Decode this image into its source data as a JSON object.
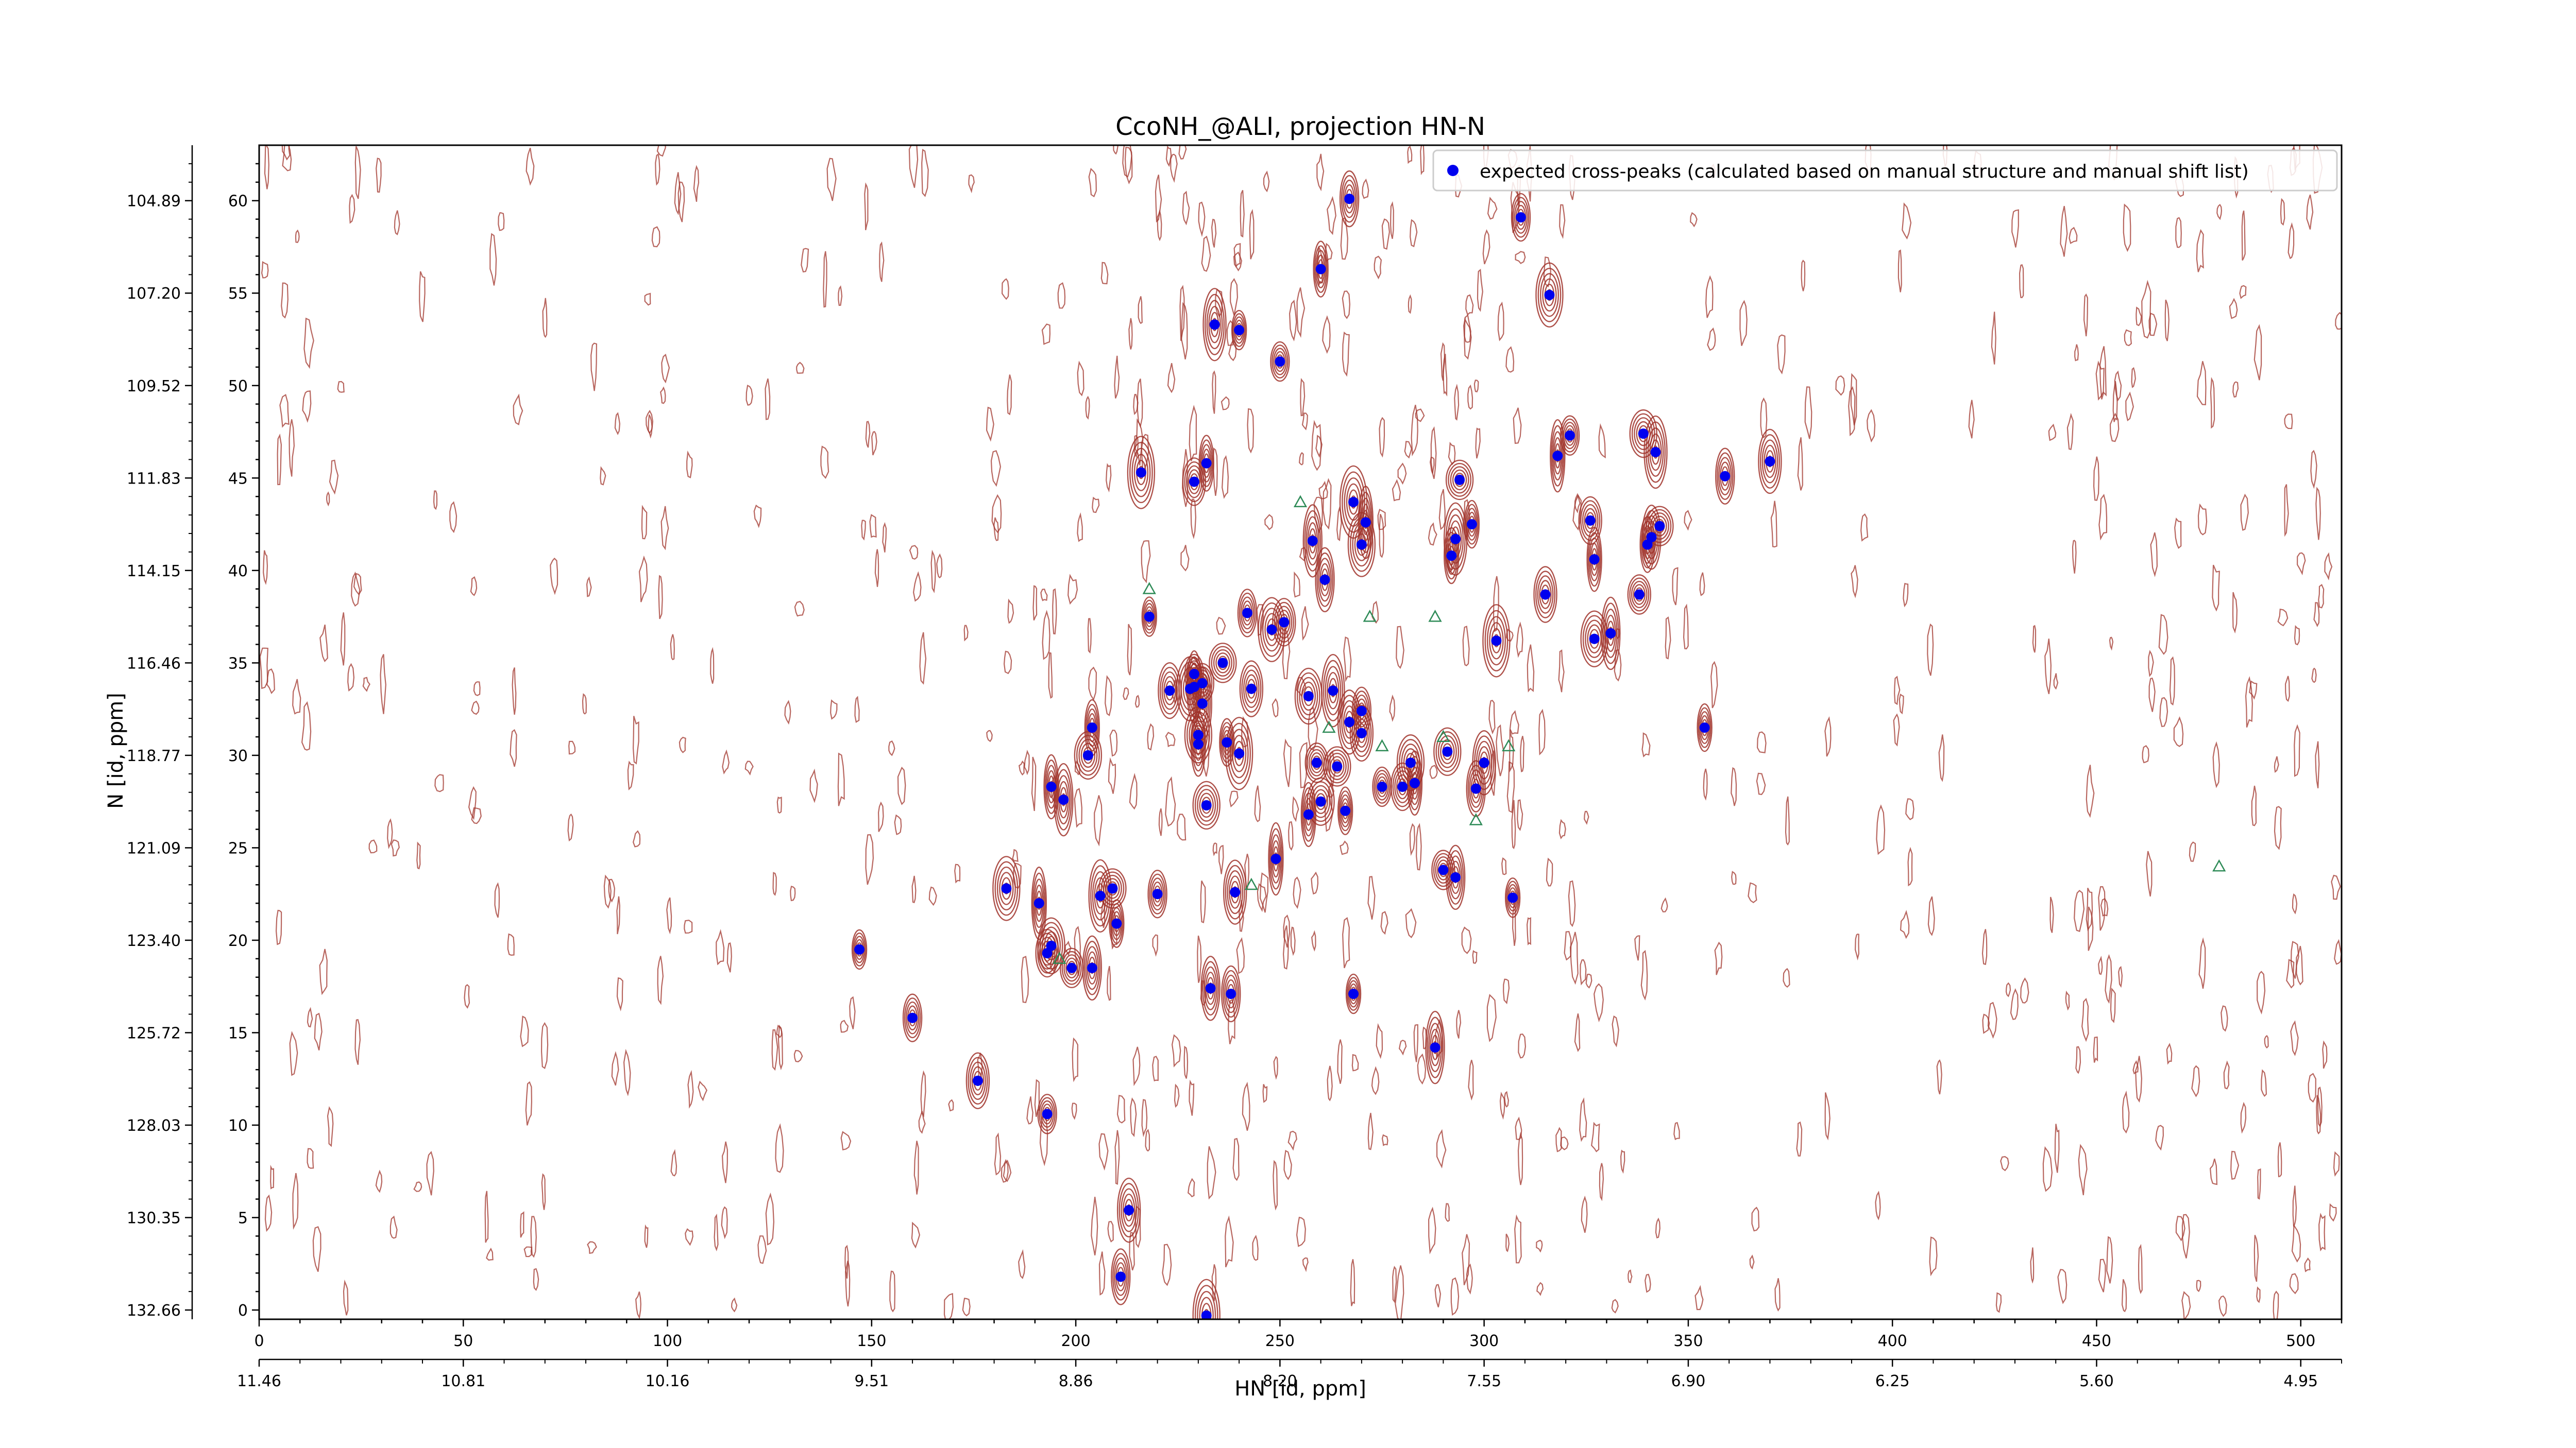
{
  "chart_data": {
    "type": "scatter",
    "title": "CcoNH_@ALI, projection HN-N",
    "xlabel": "HN [id, ppm]",
    "ylabel": "N [id, ppm]",
    "xlim": [
      0,
      510
    ],
    "ylim": [
      -0.5,
      63
    ],
    "grid": false,
    "legend": "top-right",
    "x_ticks": [
      0,
      50,
      100,
      150,
      200,
      250,
      300,
      350,
      400,
      450,
      500
    ],
    "y_ticks": [
      0,
      5,
      10,
      15,
      20,
      25,
      30,
      35,
      40,
      45,
      50,
      55,
      60
    ],
    "x_secondary_ticks": [
      "11.46",
      "10.81",
      "10.16",
      "9.51",
      "8.86",
      "8.20",
      "7.55",
      "6.90",
      "6.25",
      "5.60",
      "4.95"
    ],
    "y_secondary_ticks": [
      "132.66",
      "130.35",
      "128.03",
      "125.72",
      "123.40",
      "121.09",
      "118.77",
      "116.46",
      "114.15",
      "111.83",
      "109.52",
      "107.20",
      "104.89"
    ],
    "series": [
      {
        "name": "expected cross-peaks (calculated based on manual structure and manual shift list)",
        "marker": "filled-circle",
        "color": "#0000ee",
        "points": [
          [
            147,
            19.5
          ],
          [
            160,
            15.8
          ],
          [
            176,
            12.4
          ],
          [
            183,
            22.8
          ],
          [
            191,
            22.0
          ],
          [
            193,
            10.6
          ],
          [
            193,
            19.3
          ],
          [
            194,
            19.7
          ],
          [
            194,
            28.3
          ],
          [
            197,
            27.6
          ],
          [
            199,
            18.5
          ],
          [
            203,
            30.0
          ],
          [
            204,
            31.5
          ],
          [
            204,
            18.5
          ],
          [
            206,
            22.4
          ],
          [
            209,
            22.8
          ],
          [
            210,
            20.9
          ],
          [
            211,
            1.8
          ],
          [
            213,
            5.4
          ],
          [
            216,
            45.3
          ],
          [
            218,
            37.5
          ],
          [
            220,
            22.5
          ],
          [
            223,
            33.5
          ],
          [
            228,
            33.6
          ],
          [
            229,
            33.7
          ],
          [
            229,
            34.4
          ],
          [
            229,
            44.8
          ],
          [
            230,
            31.1
          ],
          [
            230,
            30.6
          ],
          [
            231,
            32.8
          ],
          [
            231,
            33.9
          ],
          [
            232,
            27.3
          ],
          [
            232,
            45.8
          ],
          [
            233,
            17.4
          ],
          [
            234,
            53.3
          ],
          [
            236,
            35.0
          ],
          [
            237,
            30.7
          ],
          [
            238,
            17.1
          ],
          [
            239,
            22.6
          ],
          [
            240,
            30.1
          ],
          [
            240,
            53.0
          ],
          [
            242,
            37.7
          ],
          [
            243,
            33.6
          ],
          [
            248,
            36.8
          ],
          [
            249,
            24.4
          ],
          [
            250,
            51.3
          ],
          [
            251,
            37.2
          ],
          [
            257,
            33.2
          ],
          [
            257,
            26.8
          ],
          [
            258,
            41.6
          ],
          [
            259,
            29.6
          ],
          [
            260,
            27.5
          ],
          [
            260,
            56.3
          ],
          [
            261,
            39.5
          ],
          [
            263,
            33.5
          ],
          [
            264,
            29.4
          ],
          [
            266,
            27.0
          ],
          [
            267,
            60.1
          ],
          [
            267,
            31.8
          ],
          [
            268,
            43.7
          ],
          [
            268,
            17.1
          ],
          [
            270,
            32.4
          ],
          [
            270,
            31.2
          ],
          [
            270,
            41.4
          ],
          [
            271,
            42.6
          ],
          [
            275,
            28.3
          ],
          [
            280,
            28.3
          ],
          [
            282,
            29.6
          ],
          [
            283,
            28.5
          ],
          [
            288,
            14.2
          ],
          [
            290,
            23.8
          ],
          [
            291,
            30.2
          ],
          [
            292,
            40.8
          ],
          [
            293,
            23.4
          ],
          [
            293,
            41.7
          ],
          [
            294,
            44.9
          ],
          [
            297,
            42.5
          ],
          [
            298,
            28.2
          ],
          [
            300,
            29.6
          ],
          [
            303,
            36.2
          ],
          [
            307,
            22.3
          ],
          [
            309,
            59.1
          ],
          [
            315,
            38.7
          ],
          [
            316,
            54.9
          ],
          [
            318,
            46.2
          ],
          [
            321,
            47.3
          ],
          [
            326,
            42.7
          ],
          [
            327,
            36.3
          ],
          [
            327,
            40.6
          ],
          [
            331,
            36.6
          ],
          [
            338,
            38.7
          ],
          [
            339,
            47.4
          ],
          [
            340,
            41.4
          ],
          [
            341,
            41.8
          ],
          [
            342,
            46.4
          ],
          [
            343,
            42.4
          ],
          [
            354,
            31.5
          ],
          [
            359,
            45.1
          ],
          [
            370,
            45.9
          ],
          [
            232,
            -0.3
          ]
        ]
      },
      {
        "name": "",
        "marker": "open-triangle",
        "color": "#2e8b57",
        "points": [
          [
            255,
            43.7
          ],
          [
            272,
            37.5
          ],
          [
            288,
            37.5
          ],
          [
            290,
            31.0
          ],
          [
            306,
            30.5
          ],
          [
            262,
            31.5
          ],
          [
            275,
            30.5
          ],
          [
            298,
            26.5
          ],
          [
            243,
            23.0
          ],
          [
            218,
            39.0
          ],
          [
            196,
            19.0
          ],
          [
            480,
            24.0
          ]
        ]
      }
    ]
  }
}
